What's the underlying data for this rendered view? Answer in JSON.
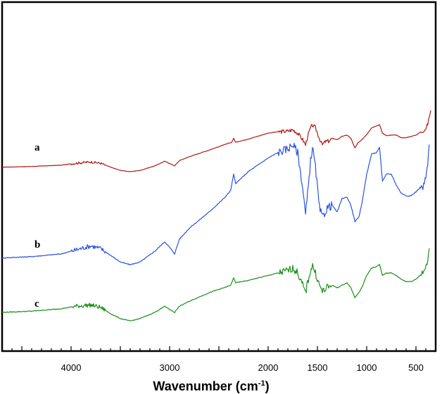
{
  "chart_data": {
    "type": "line",
    "xlabel": "Wavenumber (cm",
    "xlabel_sup": "-1",
    "xlabel_close": ")",
    "xlim": [
      4700,
      300
    ],
    "x_reversed": true,
    "x_ticks": [
      4000,
      3000,
      2000,
      1500,
      1000,
      500
    ],
    "x_tick_labels": [
      "4000",
      "3000",
      "2000",
      "1500",
      "1000",
      "500"
    ],
    "y_axis_shown": false,
    "grid": false,
    "legend": "none",
    "series": [
      {
        "name": "a",
        "color": "#b01818",
        "points": [
          [
            4700,
            8
          ],
          [
            4400,
            9
          ],
          [
            4100,
            11
          ],
          [
            3950,
            14
          ],
          [
            3800,
            16
          ],
          [
            3700,
            14
          ],
          [
            3600,
            8
          ],
          [
            3500,
            3
          ],
          [
            3400,
            1
          ],
          [
            3300,
            3
          ],
          [
            3150,
            10
          ],
          [
            3050,
            17
          ],
          [
            2990,
            13
          ],
          [
            2950,
            10
          ],
          [
            2900,
            18
          ],
          [
            2800,
            24
          ],
          [
            2600,
            34
          ],
          [
            2450,
            42
          ],
          [
            2370,
            46
          ],
          [
            2350,
            52
          ],
          [
            2330,
            46
          ],
          [
            2200,
            51
          ],
          [
            2000,
            60
          ],
          [
            1900,
            62
          ],
          [
            1800,
            63
          ],
          [
            1750,
            65
          ],
          [
            1700,
            60
          ],
          [
            1650,
            50
          ],
          [
            1620,
            42
          ],
          [
            1600,
            55
          ],
          [
            1570,
            68
          ],
          [
            1550,
            72
          ],
          [
            1520,
            68
          ],
          [
            1480,
            52
          ],
          [
            1450,
            42
          ],
          [
            1420,
            47
          ],
          [
            1380,
            48
          ],
          [
            1350,
            52
          ],
          [
            1300,
            50
          ],
          [
            1250,
            55
          ],
          [
            1200,
            57
          ],
          [
            1160,
            52
          ],
          [
            1120,
            37
          ],
          [
            1090,
            45
          ],
          [
            1050,
            50
          ],
          [
            1000,
            58
          ],
          [
            950,
            68
          ],
          [
            900,
            71
          ],
          [
            870,
            73
          ],
          [
            840,
            60
          ],
          [
            800,
            56
          ],
          [
            750,
            57
          ],
          [
            700,
            57
          ],
          [
            650,
            53
          ],
          [
            600,
            53
          ],
          [
            550,
            55
          ],
          [
            500,
            57
          ],
          [
            460,
            61
          ],
          [
            430,
            63
          ],
          [
            400,
            67
          ],
          [
            380,
            74
          ],
          [
            365,
            85
          ],
          [
            350,
            95
          ]
        ]
      },
      {
        "name": "b",
        "color": "#2a52e0",
        "points": [
          [
            4700,
            8
          ],
          [
            4400,
            9
          ],
          [
            4100,
            11
          ],
          [
            3950,
            14
          ],
          [
            3800,
            17
          ],
          [
            3700,
            15
          ],
          [
            3600,
            10
          ],
          [
            3500,
            5
          ],
          [
            3400,
            3
          ],
          [
            3300,
            5
          ],
          [
            3150,
            13
          ],
          [
            3050,
            20
          ],
          [
            2990,
            15
          ],
          [
            2950,
            11
          ],
          [
            2900,
            22
          ],
          [
            2800,
            30
          ],
          [
            2600,
            42
          ],
          [
            2450,
            52
          ],
          [
            2380,
            58
          ],
          [
            2350,
            70
          ],
          [
            2330,
            63
          ],
          [
            2200,
            72
          ],
          [
            2000,
            82
          ],
          [
            1900,
            86
          ],
          [
            1800,
            89
          ],
          [
            1750,
            92
          ],
          [
            1700,
            86
          ],
          [
            1650,
            60
          ],
          [
            1620,
            40
          ],
          [
            1600,
            55
          ],
          [
            1570,
            80
          ],
          [
            1550,
            90
          ],
          [
            1520,
            75
          ],
          [
            1480,
            45
          ],
          [
            1450,
            38
          ],
          [
            1400,
            45
          ],
          [
            1350,
            47
          ],
          [
            1300,
            42
          ],
          [
            1250,
            52
          ],
          [
            1200,
            53
          ],
          [
            1160,
            47
          ],
          [
            1120,
            35
          ],
          [
            1080,
            38
          ],
          [
            1050,
            48
          ],
          [
            1000,
            70
          ],
          [
            950,
            85
          ],
          [
            900,
            86
          ],
          [
            870,
            90
          ],
          [
            840,
            65
          ],
          [
            800,
            70
          ],
          [
            750,
            70
          ],
          [
            700,
            62
          ],
          [
            650,
            56
          ],
          [
            600,
            54
          ],
          [
            550,
            54
          ],
          [
            500,
            57
          ],
          [
            460,
            60
          ],
          [
            430,
            60
          ],
          [
            400,
            67
          ],
          [
            380,
            78
          ],
          [
            365,
            92
          ]
        ]
      },
      {
        "name": "c",
        "color": "#1d8f1d",
        "points": [
          [
            4700,
            8
          ],
          [
            4400,
            9
          ],
          [
            4100,
            11
          ],
          [
            3950,
            13
          ],
          [
            3800,
            14
          ],
          [
            3700,
            12
          ],
          [
            3600,
            7
          ],
          [
            3500,
            3
          ],
          [
            3400,
            1
          ],
          [
            3300,
            3
          ],
          [
            3150,
            8
          ],
          [
            3050,
            13
          ],
          [
            2990,
            10
          ],
          [
            2950,
            8
          ],
          [
            2900,
            13
          ],
          [
            2800,
            17
          ],
          [
            2600,
            24
          ],
          [
            2450,
            28
          ],
          [
            2380,
            30
          ],
          [
            2350,
            36
          ],
          [
            2330,
            32
          ],
          [
            2200,
            34
          ],
          [
            2000,
            38
          ],
          [
            1900,
            40
          ],
          [
            1800,
            42
          ],
          [
            1750,
            44
          ],
          [
            1700,
            40
          ],
          [
            1650,
            30
          ],
          [
            1620,
            24
          ],
          [
            1600,
            32
          ],
          [
            1570,
            42
          ],
          [
            1550,
            46
          ],
          [
            1520,
            40
          ],
          [
            1480,
            30
          ],
          [
            1450,
            25
          ],
          [
            1400,
            28
          ],
          [
            1350,
            30
          ],
          [
            1300,
            28
          ],
          [
            1250,
            30
          ],
          [
            1200,
            32
          ],
          [
            1160,
            28
          ],
          [
            1120,
            20
          ],
          [
            1080,
            24
          ],
          [
            1050,
            28
          ],
          [
            1000,
            38
          ],
          [
            950,
            44
          ],
          [
            900,
            45
          ],
          [
            870,
            47
          ],
          [
            840,
            38
          ],
          [
            800,
            40
          ],
          [
            750,
            40
          ],
          [
            700,
            38
          ],
          [
            650,
            35
          ],
          [
            600,
            33
          ],
          [
            550,
            33
          ],
          [
            500,
            35
          ],
          [
            460,
            38
          ],
          [
            430,
            40
          ],
          [
            400,
            44
          ],
          [
            380,
            50
          ],
          [
            365,
            60
          ]
        ]
      }
    ]
  }
}
